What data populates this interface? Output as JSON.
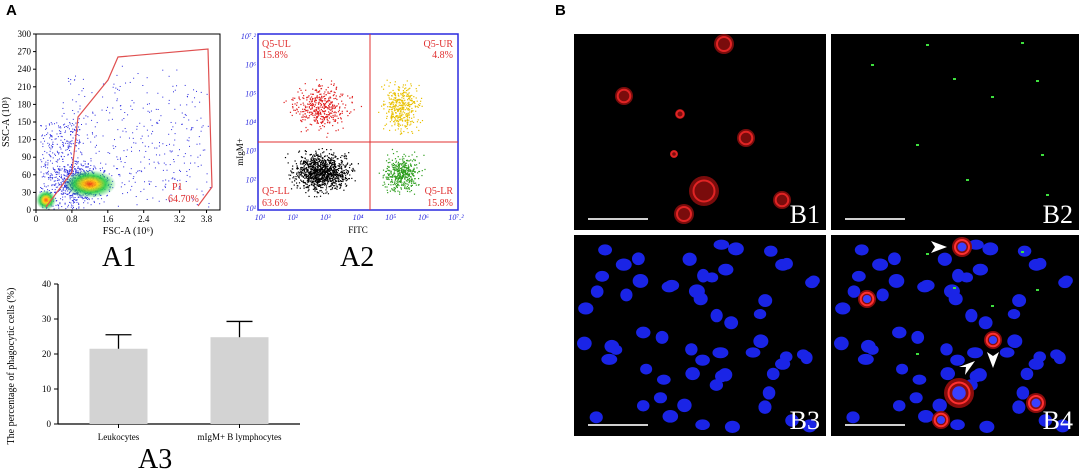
{
  "panel_a_letter": "A",
  "panel_b_letter": "B",
  "a1": {
    "label": "A1",
    "xlabel": "FSC-A (10⁶)",
    "ylabel": "SSC-A (10³)",
    "xticks": [
      "0",
      "0.8",
      "1.6",
      "2.4",
      "3.2",
      "3.8"
    ],
    "yticks": [
      "0",
      "30",
      "60",
      "90",
      "120",
      "150",
      "180",
      "210",
      "240",
      "270",
      "300"
    ],
    "gate_name": "P1",
    "gate_pct": "64.70%"
  },
  "a2": {
    "label": "A2",
    "xlabel": "FITC",
    "ylabel": "mIgM+",
    "xticks": [
      "10¹",
      "10²",
      "10³",
      "10⁴",
      "10⁵",
      "10⁶",
      "10⁷.²"
    ],
    "yticks": [
      "10¹",
      "10²",
      "10³",
      "10⁴",
      "10⁵",
      "10⁶",
      "10⁷.²"
    ],
    "q_ul": {
      "name": "Q5-UL",
      "pct": "15.8%"
    },
    "q_ur": {
      "name": "Q5-UR",
      "pct": "4.8%"
    },
    "q_ll": {
      "name": "Q5-LL",
      "pct": "63.6%"
    },
    "q_lr": {
      "name": "Q5-LR",
      "pct": "15.8%"
    }
  },
  "a3": {
    "label": "A3"
  },
  "chart_data": {
    "type": "bar",
    "categories": [
      "Leukocytes",
      "mIgM+ B lymphocytes"
    ],
    "values": [
      21.5,
      24.8
    ],
    "errors": [
      4.0,
      4.5
    ],
    "ylabel": "The percentage of phagocytic cells (%)",
    "xlabel": "",
    "ylim": [
      0,
      40
    ],
    "yticks": [
      "0",
      "10",
      "20",
      "30",
      "40"
    ],
    "bar_color": "#d3d3d3",
    "grid": false
  },
  "micrographs": [
    {
      "label": "B1",
      "channel": "red"
    },
    {
      "label": "B2",
      "channel": "green"
    },
    {
      "label": "B3",
      "channel": "blue"
    },
    {
      "label": "B4",
      "channel": "merge"
    }
  ]
}
